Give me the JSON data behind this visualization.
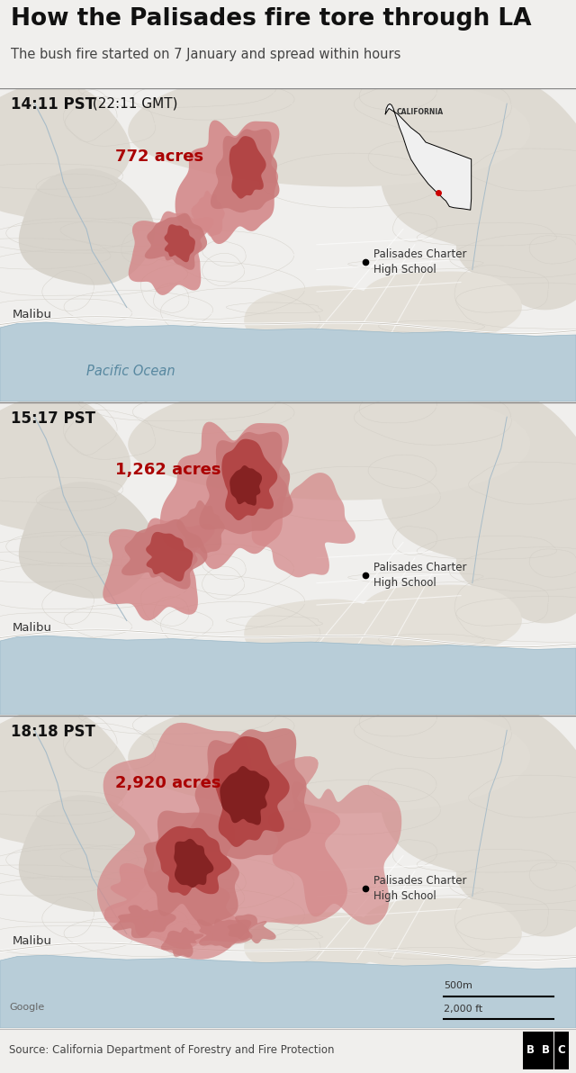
{
  "title": "How the Palisades fire tore through LA",
  "subtitle": "The bush fire started on 7 January and spread within hours",
  "bg_color": "#f0efed",
  "map_bg": "#e8e4de",
  "map_bg2": "#f2efea",
  "ocean_color": "#b8cdd8",
  "ocean_edge": "#9ab8c8",
  "panels": [
    {
      "time_label": "14:11 PST",
      "time_sub": " (22:11 GMT)",
      "acres_label": "772 acres",
      "show_california": true,
      "show_pacific": true
    },
    {
      "time_label": "15:17 PST",
      "time_sub": "",
      "acres_label": "1,262 acres",
      "show_california": false,
      "show_pacific": false
    },
    {
      "time_label": "18:18 PST",
      "time_sub": "",
      "acres_label": "2,920 acres",
      "show_california": false,
      "show_pacific": false
    }
  ],
  "fire_color_light": "#d4898a",
  "fire_color_light2": "#c87878",
  "fire_color_mid": "#b04040",
  "fire_color_dark": "#7a1a1a",
  "contour_color": "#d0ccc4",
  "road_color": "#ffffff",
  "stream_color": "#a8bcc8",
  "label_color": "#333333",
  "acres_color": "#aa0000",
  "ocean_label_color": "#5888a0",
  "source_text": "Source: California Department of Forestry and Fire Protection",
  "google_text": "Google",
  "scale_500m": "500m",
  "scale_2000ft": "2,000 ft",
  "malibu_label": "Malibu",
  "school_label": "Palisades Charter\nHigh School",
  "pacific_label": "Pacific Ocean",
  "california_label": "CALIFORNIA"
}
